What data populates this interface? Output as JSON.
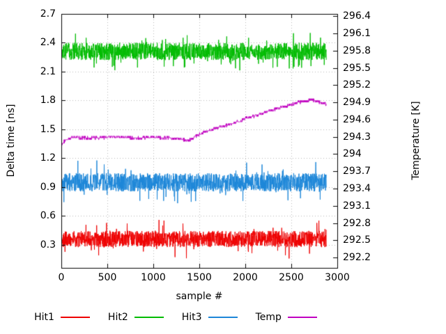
{
  "chart_data": {
    "type": "line",
    "title": "",
    "xlabel": "sample #",
    "ylabel": "Delta time [ns]",
    "y2label": "Temperature [K]",
    "xlim": [
      0,
      3000
    ],
    "ylim": [
      0.06,
      2.7
    ],
    "y2lim": [
      292.02,
      296.44
    ],
    "grid": true,
    "n_samples": 2880,
    "x_ticks": {
      "values": [
        0,
        500,
        1000,
        1500,
        2000,
        2500,
        3000
      ],
      "labels": [
        "0",
        "500",
        "1000",
        "1500",
        "2000",
        "2500",
        "3000"
      ]
    },
    "y_ticks": {
      "values": [
        0.3,
        0.6,
        0.9,
        1.2,
        1.5,
        1.8,
        2.1,
        2.4,
        2.7
      ],
      "labels": [
        "0.3",
        "0.6",
        "0.9",
        "1.2",
        "1.5",
        "1.8",
        "2.1",
        "2.4",
        "2.7"
      ]
    },
    "y2_ticks": {
      "values": [
        292.2,
        292.5,
        292.8,
        293.1,
        293.4,
        293.7,
        294,
        294.3,
        294.6,
        294.9,
        295.2,
        295.5,
        295.8,
        296.1,
        296.4
      ],
      "labels": [
        "292.2",
        "292.5",
        "292.8",
        "293.1",
        "293.4",
        "293.7",
        "294",
        "294.3",
        "294.6",
        "294.9",
        "295.2",
        "295.5",
        "295.8",
        "296.1",
        "296.4"
      ]
    },
    "grid_color": "#b8b8b8",
    "axis_color": "#000000",
    "series": [
      {
        "name": "Hit1",
        "axis": "y1",
        "style": "noise-band",
        "color": "#ee0000",
        "mean": 0.36,
        "amplitude": 0.085,
        "spike_prob": 0.05,
        "spike_mult": 2.4,
        "seed": 101,
        "approx_range": [
          0.18,
          0.6
        ]
      },
      {
        "name": "Hit2",
        "axis": "y1",
        "style": "noise-band",
        "color": "#00bb00",
        "mean": 2.31,
        "amplitude": 0.09,
        "spike_prob": 0.05,
        "spike_mult": 2.2,
        "seed": 202,
        "approx_range": [
          2.08,
          2.55
        ]
      },
      {
        "name": "Hit3",
        "axis": "y1",
        "style": "noise-band",
        "color": "#1c86d8",
        "mean": 0.95,
        "amplitude": 0.095,
        "spike_prob": 0.05,
        "spike_mult": 2.4,
        "seed": 303,
        "approx_range": [
          0.7,
          1.25
        ]
      },
      {
        "name": "Temp",
        "axis": "y2",
        "style": "stepped-line",
        "color": "#c000c0",
        "quantize_step": 0.031,
        "jitter": 0.025,
        "seed": 404,
        "points": [
          [
            0,
            294.15
          ],
          [
            30,
            294.22
          ],
          [
            80,
            294.27
          ],
          [
            150,
            294.29
          ],
          [
            350,
            294.28
          ],
          [
            600,
            294.3
          ],
          [
            800,
            294.28
          ],
          [
            1000,
            294.29
          ],
          [
            1200,
            294.28
          ],
          [
            1300,
            294.26
          ],
          [
            1380,
            294.24
          ],
          [
            1430,
            294.28
          ],
          [
            1480,
            294.33
          ],
          [
            1550,
            294.38
          ],
          [
            1650,
            294.43
          ],
          [
            1750,
            294.48
          ],
          [
            1850,
            294.53
          ],
          [
            1920,
            294.56
          ],
          [
            2000,
            294.62
          ],
          [
            2100,
            294.66
          ],
          [
            2200,
            294.72
          ],
          [
            2300,
            294.76
          ],
          [
            2400,
            294.82
          ],
          [
            2500,
            294.86
          ],
          [
            2570,
            294.9
          ],
          [
            2650,
            294.93
          ],
          [
            2720,
            294.94
          ],
          [
            2780,
            294.92
          ],
          [
            2830,
            294.89
          ],
          [
            2880,
            294.86
          ]
        ]
      }
    ],
    "legend": {
      "position": "below",
      "entries": [
        "Hit1",
        "Hit2",
        "Hit3",
        "Temp"
      ]
    }
  }
}
